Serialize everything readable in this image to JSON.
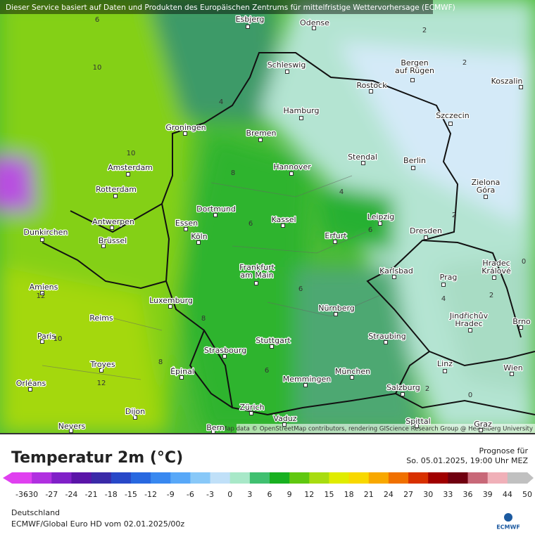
{
  "header": {
    "notice": "Dieser Service basiert auf Daten und Produkten des Europäischen Zentrums für mittelfristige Wettervorhersage (ECMWF)"
  },
  "map": {
    "attribution": "Map data © OpenStreetMap contributors, rendering GIScience Research Group @ Heidelberg University",
    "cities": [
      [
        "Esbjerg"
      ],
      [
        "Odense"
      ],
      [
        "Schleswig"
      ],
      [
        "Bergen",
        "auf Rügen"
      ],
      [
        "Rostock"
      ],
      [
        "Koszalin"
      ],
      [
        "Hamburg"
      ],
      [
        "Szczecin"
      ],
      [
        "Bremen"
      ],
      [
        "Groningen"
      ],
      [
        "Amsterdam"
      ],
      [
        "Hannover"
      ],
      [
        "Stendal"
      ],
      [
        "Berlin"
      ],
      [
        "Zielona",
        "Góra"
      ],
      [
        "Rotterdam"
      ],
      [
        "Dortmund"
      ],
      [
        "Leipzig"
      ],
      [
        "Antwerpen"
      ],
      [
        "Essen"
      ],
      [
        "Kassel"
      ],
      [
        "Dunkirchen"
      ],
      [
        "Köln"
      ],
      [
        "Erfurt"
      ],
      [
        "Dresden"
      ],
      [
        "Brüssel"
      ],
      [
        "Frankfurt",
        "am Main"
      ],
      [
        "Karlsbad"
      ],
      [
        "Prag"
      ],
      [
        "Hradec",
        "Králové"
      ],
      [
        "Amiens"
      ],
      [
        "Luxemburg"
      ],
      [
        "Nürnberg"
      ],
      [
        "Jindřichův",
        "Hradec"
      ],
      [
        "Brno"
      ],
      [
        "Reims"
      ],
      [
        "Paris"
      ],
      [
        "Stuttgart"
      ],
      [
        "Straubing"
      ],
      [
        "Strasbourg"
      ],
      [
        "Troyes"
      ],
      [
        "Épinal"
      ],
      [
        "München"
      ],
      [
        "Linz"
      ],
      [
        "Wien"
      ],
      [
        "Orléans"
      ],
      [
        "Memmingen"
      ],
      [
        "Salzburg"
      ],
      [
        "Zürich"
      ],
      [
        "Vaduz"
      ],
      [
        "Dijon"
      ],
      [
        "Nevers"
      ],
      [
        "Bern"
      ],
      [
        "Spittal"
      ],
      [
        "Graz"
      ]
    ],
    "isotherm_labels": [
      6,
      10,
      4,
      2,
      2,
      10,
      8,
      4,
      2,
      6,
      6,
      12,
      8,
      6,
      4,
      2,
      0,
      8,
      12,
      6,
      2,
      0,
      10
    ]
  },
  "legend": {
    "title": "Temperatur 2m (°C)",
    "ticks": [
      -36,
      -30,
      -27,
      -24,
      -21,
      -18,
      -15,
      -12,
      -9,
      -6,
      -3,
      0,
      3,
      6,
      9,
      12,
      15,
      18,
      21,
      24,
      27,
      30,
      33,
      36,
      39,
      44,
      50
    ],
    "colors": [
      "#e040f0",
      "#b030e0",
      "#8020c8",
      "#5a14a8",
      "#3a2aa8",
      "#2848c8",
      "#2868e0",
      "#3888f0",
      "#58a8f8",
      "#88c8f8",
      "#c0e0f8",
      "#a8e8c8",
      "#40c070",
      "#18b020",
      "#60c810",
      "#a8dc10",
      "#e0ec00",
      "#f8d800",
      "#f8a800",
      "#f07000",
      "#d83000",
      "#a00000",
      "#700010",
      "#c86878",
      "#f0b0b8",
      "#c0c0c0"
    ]
  },
  "forecast": {
    "label": "Prognose für",
    "time": "So. 05.01.2025, 19:00 Uhr MEZ"
  },
  "footer": {
    "region": "Deutschland",
    "model": "ECMWF/Global Euro HD vom  02.01.2025/00z",
    "logo": "ECMWF"
  }
}
